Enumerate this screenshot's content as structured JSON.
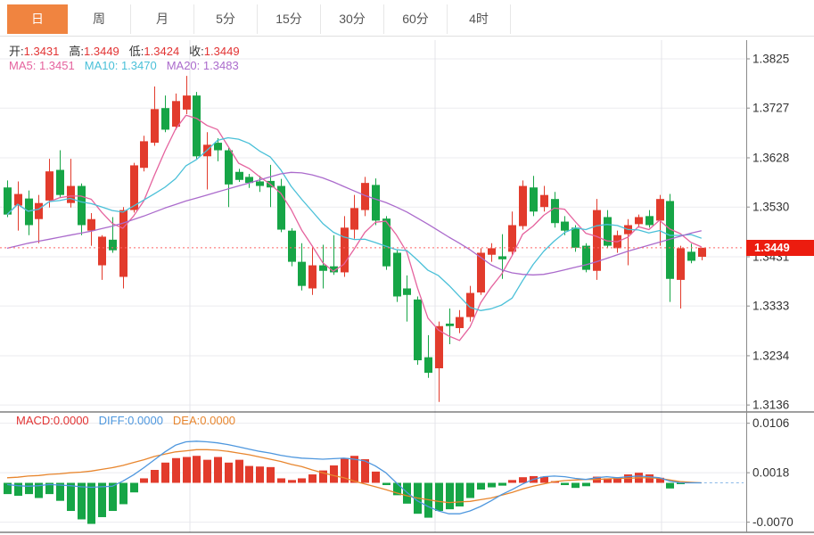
{
  "toolbar": {
    "tabs": [
      {
        "label": "日",
        "active": true
      },
      {
        "label": "周",
        "active": false
      },
      {
        "label": "月",
        "active": false
      },
      {
        "label": "5分",
        "active": false
      },
      {
        "label": "15分",
        "active": false
      },
      {
        "label": "30分",
        "active": false
      },
      {
        "label": "60分",
        "active": false
      },
      {
        "label": "4时",
        "active": false
      }
    ]
  },
  "legend": {
    "ohlc": [
      {
        "label": "开:",
        "value": "1.3431"
      },
      {
        "label": "高:",
        "value": "1.3449"
      },
      {
        "label": "低:",
        "value": "1.3424"
      },
      {
        "label": "收:",
        "value": "1.3449"
      }
    ],
    "ma": [
      {
        "label": "MA5:",
        "value": "1.3451"
      },
      {
        "label": "MA10:",
        "value": "1.3470"
      },
      {
        "label": "MA20:",
        "value": "1.3483"
      }
    ]
  },
  "macd_legend": [
    {
      "label": "MACD:",
      "value": "0.0000"
    },
    {
      "label": "DIFF:",
      "value": "0.0000"
    },
    {
      "label": "DEA:",
      "value": "0.0000"
    }
  ],
  "price_axis": {
    "ticks": [
      "1.3825",
      "1.3727",
      "1.3628",
      "1.3530",
      "1.3431",
      "1.3333",
      "1.3234",
      "1.3136"
    ],
    "current_badge": "1.3449"
  },
  "macd_axis": {
    "ticks": [
      "0.0106",
      "0.0018",
      "-0.0070"
    ]
  },
  "colors": {
    "up": "#e23b2c",
    "down": "#16a546",
    "ma5": "#e5639e",
    "ma10": "#4ac0d8",
    "ma20": "#ab6bcc",
    "diff": "#4e97de",
    "dea": "#e8862e",
    "value_red": "#e23333",
    "tab_active_bg": "#f08440",
    "badge_bg": "#ec1c0f",
    "current_line": "#ff6666",
    "grid": "#ebebef",
    "vgrid": "#e4e4ea",
    "axis_text": "#333333",
    "panel_border": "#3f3f3f",
    "axis_line": "#8a8a8a"
  },
  "chart_data": [
    {
      "type": "candlestick",
      "title": "daily candles with MA5/MA10/MA20 overlays",
      "ohlc_order": [
        "open",
        "high",
        "low",
        "close"
      ],
      "up_means": "close >= open (red)",
      "current_price": 1.3449,
      "y_ticks": [
        1.3825,
        1.3727,
        1.3628,
        1.353,
        1.3431,
        1.3333,
        1.3234,
        1.3136
      ],
      "ohlc": [
        [
          1.3569,
          1.3583,
          1.351,
          1.3515
        ],
        [
          1.3533,
          1.3581,
          1.3483,
          1.3556
        ],
        [
          1.3547,
          1.3563,
          1.3474,
          1.3494
        ],
        [
          1.3506,
          1.3554,
          1.3458,
          1.3538
        ],
        [
          1.3543,
          1.3626,
          1.3529,
          1.3601
        ],
        [
          1.3604,
          1.3643,
          1.3548,
          1.3554
        ],
        [
          1.3538,
          1.3626,
          1.3529,
          1.3572
        ],
        [
          1.3572,
          1.3577,
          1.3474,
          1.3494
        ],
        [
          1.3483,
          1.3518,
          1.3453,
          1.3506
        ],
        [
          1.3414,
          1.3474,
          1.3385,
          1.3471
        ],
        [
          1.3465,
          1.351,
          1.3439,
          1.3444
        ],
        [
          1.3391,
          1.353,
          1.3368,
          1.3524
        ],
        [
          1.3524,
          1.3618,
          1.3519,
          1.3613
        ],
        [
          1.3608,
          1.3672,
          1.3601,
          1.3661
        ],
        [
          1.3658,
          1.377,
          1.3652,
          1.3725
        ],
        [
          1.3727,
          1.3752,
          1.3679,
          1.3684
        ],
        [
          1.369,
          1.3756,
          1.3684,
          1.3741
        ],
        [
          1.3724,
          1.3791,
          1.3715,
          1.3752
        ],
        [
          1.3752,
          1.3759,
          1.3626,
          1.3631
        ],
        [
          1.3631,
          1.3679,
          1.3565,
          1.3654
        ],
        [
          1.3658,
          1.3667,
          1.3621,
          1.3643
        ],
        [
          1.3643,
          1.3648,
          1.353,
          1.3575
        ],
        [
          1.36,
          1.3606,
          1.358,
          1.3584
        ],
        [
          1.359,
          1.3596,
          1.3568,
          1.3578
        ],
        [
          1.3581,
          1.3592,
          1.356,
          1.3572
        ],
        [
          1.3582,
          1.3614,
          1.353,
          1.3569
        ],
        [
          1.3572,
          1.3586,
          1.348,
          1.3485
        ],
        [
          1.3483,
          1.3488,
          1.3412,
          1.3421
        ],
        [
          1.3421,
          1.3458,
          1.3364,
          1.3373
        ],
        [
          1.3368,
          1.3453,
          1.3355,
          1.3414
        ],
        [
          1.3414,
          1.3455,
          1.3368,
          1.3403
        ],
        [
          1.3412,
          1.3474,
          1.3395,
          1.34
        ],
        [
          1.34,
          1.3512,
          1.3391,
          1.3489
        ],
        [
          1.3485,
          1.3554,
          1.3467,
          1.3528
        ],
        [
          1.3524,
          1.359,
          1.3512,
          1.3578
        ],
        [
          1.3574,
          1.3587,
          1.3494,
          1.3503
        ],
        [
          1.3507,
          1.3512,
          1.3405,
          1.3412
        ],
        [
          1.3439,
          1.3444,
          1.3341,
          1.3352
        ],
        [
          1.3368,
          1.3394,
          1.3302,
          1.3355
        ],
        [
          1.3346,
          1.3352,
          1.3216,
          1.3225
        ],
        [
          1.3231,
          1.3275,
          1.319,
          1.32
        ],
        [
          1.3209,
          1.3302,
          1.3142,
          1.3293
        ],
        [
          1.3298,
          1.3328,
          1.3257,
          1.3293
        ],
        [
          1.3289,
          1.3325,
          1.3279,
          1.3311
        ],
        [
          1.3311,
          1.3373,
          1.3302,
          1.3359
        ],
        [
          1.336,
          1.3448,
          1.3355,
          1.3439
        ],
        [
          1.3435,
          1.3458,
          1.3421,
          1.3448
        ],
        [
          1.3432,
          1.3476,
          1.3387,
          1.3426
        ],
        [
          1.3441,
          1.3521,
          1.3435,
          1.3494
        ],
        [
          1.3492,
          1.3583,
          1.3485,
          1.3572
        ],
        [
          1.3569,
          1.3592,
          1.3512,
          1.3521
        ],
        [
          1.353,
          1.3572,
          1.3521,
          1.3554
        ],
        [
          1.3546,
          1.356,
          1.3489,
          1.3498
        ],
        [
          1.3501,
          1.3512,
          1.3474,
          1.3483
        ],
        [
          1.3489,
          1.3494,
          1.3441,
          1.3449
        ],
        [
          1.3453,
          1.3458,
          1.34,
          1.3405
        ],
        [
          1.3403,
          1.3546,
          1.3385,
          1.3524
        ],
        [
          1.351,
          1.3524,
          1.3448,
          1.3453
        ],
        [
          1.3448,
          1.3483,
          1.3439,
          1.3474
        ],
        [
          1.3476,
          1.3506,
          1.3414,
          1.3494
        ],
        [
          1.3496,
          1.3515,
          1.3489,
          1.351
        ],
        [
          1.3512,
          1.3524,
          1.3489,
          1.3494
        ],
        [
          1.3503,
          1.3554,
          1.3453,
          1.3546
        ],
        [
          1.3542,
          1.3556,
          1.3341,
          1.3387
        ],
        [
          1.3385,
          1.3453,
          1.3328,
          1.3448
        ],
        [
          1.3441,
          1.3457,
          1.3418,
          1.3423
        ],
        [
          1.3431,
          1.3449,
          1.3424,
          1.3449
        ]
      ],
      "ma20": [
        1.3448,
        1.3453,
        1.3458,
        1.3462,
        1.3466,
        1.347,
        1.3474,
        1.3478,
        1.3482,
        1.3487,
        1.3492,
        1.3498,
        1.3505,
        1.3512,
        1.352,
        1.3528,
        1.3535,
        1.3542,
        1.3548,
        1.3554,
        1.356,
        1.3566,
        1.3572,
        1.3578,
        1.3584,
        1.359,
        1.3596,
        1.3599,
        1.3598,
        1.3594,
        1.3588,
        1.358,
        1.3571,
        1.3562,
        1.3553,
        1.3546,
        1.3539,
        1.353,
        1.352,
        1.3508,
        1.3496,
        1.3483,
        1.347,
        1.3458,
        1.3445,
        1.343,
        1.3415,
        1.3405,
        1.3399,
        1.3396,
        1.3395,
        1.3396,
        1.34,
        1.3405,
        1.341,
        1.3415,
        1.3421,
        1.3428,
        1.3435,
        1.3442,
        1.3448,
        1.3454,
        1.346,
        1.3466,
        1.3472,
        1.3478,
        1.3483
      ],
      "ma5_last": 1.3451,
      "ma10_last": 1.347,
      "ma20_last": 1.3483
    },
    {
      "type": "bar",
      "title": "MACD sub-chart",
      "y_ticks": [
        0.0106,
        0.0018,
        -0.007
      ],
      "hist": [
        -0.002,
        -0.0023,
        -0.002,
        -0.0027,
        -0.002,
        -0.0032,
        -0.005,
        -0.0065,
        -0.0073,
        -0.0061,
        -0.005,
        -0.0038,
        -0.0017,
        0.0008,
        0.0023,
        0.0036,
        0.0044,
        0.0046,
        0.0048,
        0.0041,
        0.0046,
        0.0036,
        0.0041,
        0.003,
        0.0029,
        0.0028,
        0.0008,
        0.0005,
        0.0008,
        0.0015,
        0.0022,
        0.0031,
        0.0044,
        0.0048,
        0.0042,
        0.002,
        -0.0004,
        -0.0022,
        -0.0037,
        -0.0055,
        -0.0062,
        -0.005,
        -0.0047,
        -0.0042,
        -0.0027,
        -0.0012,
        -0.0008,
        -0.0005,
        0.0005,
        0.001,
        0.0012,
        0.0011,
        0.0003,
        -0.0004,
        -0.0009,
        -0.0006,
        0.0011,
        0.0008,
        0.001,
        0.0015,
        0.0018,
        0.0015,
        0.0009,
        -0.001,
        -0.0002,
        0.0,
        0.0
      ],
      "diff": [
        -0.0003,
        -0.0005,
        -0.0006,
        -0.0005,
        -0.0003,
        -0.0004,
        -0.0005,
        -0.0007,
        -0.0008,
        -0.0007,
        -0.0006,
        0.0003,
        0.0014,
        0.0027,
        0.0041,
        0.0055,
        0.0067,
        0.0073,
        0.0074,
        0.0073,
        0.0071,
        0.0068,
        0.0064,
        0.006,
        0.0056,
        0.0053,
        0.0049,
        0.0046,
        0.0044,
        0.0043,
        0.0042,
        0.0043,
        0.0044,
        0.0042,
        0.0039,
        0.003,
        0.0018,
        0.0,
        -0.0017,
        -0.0032,
        -0.0042,
        -0.005,
        -0.0055,
        -0.0055,
        -0.005,
        -0.0042,
        -0.0032,
        -0.0021,
        -0.0012,
        -0.0002,
        0.0006,
        0.0011,
        0.0012,
        0.0011,
        0.0008,
        0.0006,
        0.0009,
        0.0011,
        0.0009,
        0.0011,
        0.0012,
        0.0011,
        0.0009,
        0.0003,
        0.0,
        0.0,
        0.0
      ],
      "dea": [
        0.0009,
        0.001,
        0.0012,
        0.0013,
        0.0015,
        0.0016,
        0.0018,
        0.0019,
        0.0021,
        0.0024,
        0.0027,
        0.0031,
        0.0036,
        0.0041,
        0.0047,
        0.0051,
        0.0055,
        0.0057,
        0.0059,
        0.0059,
        0.0058,
        0.0056,
        0.0053,
        0.005,
        0.0046,
        0.0042,
        0.0038,
        0.0033,
        0.0029,
        0.0023,
        0.0018,
        0.0013,
        0.0009,
        0.0003,
        -0.0002,
        -0.0007,
        -0.0012,
        -0.0018,
        -0.0023,
        -0.0027,
        -0.003,
        -0.0033,
        -0.0035,
        -0.0034,
        -0.0033,
        -0.003,
        -0.0027,
        -0.0022,
        -0.0017,
        -0.0011,
        -0.0006,
        -0.0002,
        0.0002,
        0.0004,
        0.0005,
        0.0006,
        0.0006,
        0.0007,
        0.0008,
        0.0008,
        0.0009,
        0.0009,
        0.0008,
        0.0005,
        0.0002,
        0.0001,
        0.0
      ]
    }
  ]
}
